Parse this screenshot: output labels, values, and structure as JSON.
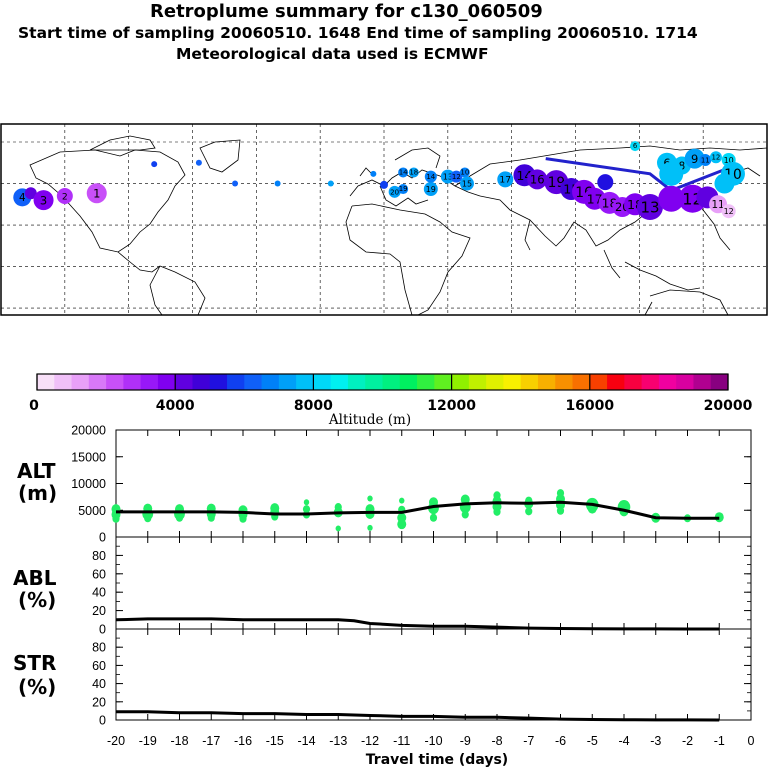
{
  "header": {
    "title": "Retroplume summary for c130_060509",
    "line2": "Start time of sampling 20060510.  1648     End time of sampling 20060510.  1714",
    "line3": "Meteorological data used is ECMWF"
  },
  "colors": {
    "point_green": "#22ee66",
    "line": "#000000",
    "track_blue": "#2222cc"
  },
  "colorbar": {
    "label": "Altitude (m)",
    "ticks": [
      "0",
      "4000",
      "8000",
      "12000",
      "16000",
      "20000"
    ],
    "colors": [
      "#f8e0f8",
      "#f0c0f8",
      "#e8a0f8",
      "#d878f8",
      "#c850f8",
      "#b030f8",
      "#9818f8",
      "#8000f0",
      "#6000e0",
      "#4000d8",
      "#2010e0",
      "#1040f0",
      "#1060f8",
      "#0080f8",
      "#00a0f8",
      "#00c0f8",
      "#00d8f8",
      "#00f0f0",
      "#00f0c0",
      "#00f0a0",
      "#00f080",
      "#00f060",
      "#30f040",
      "#60f020",
      "#90f000",
      "#c0f000",
      "#e0f000",
      "#f8f000",
      "#f8d000",
      "#f8b000",
      "#f89000",
      "#f87000",
      "#f84000",
      "#f80010",
      "#f80040",
      "#f80070",
      "#f000a0",
      "#d800a0",
      "#b00090",
      "#880080"
    ]
  },
  "map": {
    "plume_points": [
      {
        "lon": -170,
        "lat": 20,
        "c": "#1060f8",
        "r": 9,
        "label": "4"
      },
      {
        "lon": -166,
        "lat": 23,
        "c": "#6000e0",
        "r": 6,
        "label": ""
      },
      {
        "lon": -160,
        "lat": 18,
        "c": "#8000f0",
        "r": 10,
        "label": "3"
      },
      {
        "lon": -150,
        "lat": 21,
        "c": "#b030f8",
        "r": 8,
        "label": "2"
      },
      {
        "lon": -135,
        "lat": 23,
        "c": "#c850f8",
        "r": 10,
        "label": "1"
      },
      {
        "lon": -108,
        "lat": 44,
        "c": "#1040f0",
        "r": 3,
        "label": ""
      },
      {
        "lon": -87,
        "lat": 45,
        "c": "#1060f8",
        "r": 3,
        "label": ""
      },
      {
        "lon": -70,
        "lat": 30,
        "c": "#1060f8",
        "r": 3,
        "label": ""
      },
      {
        "lon": -50,
        "lat": 30,
        "c": "#0080f8",
        "r": 3,
        "label": ""
      },
      {
        "lon": -25,
        "lat": 30,
        "c": "#00a0f8",
        "r": 3,
        "label": ""
      },
      {
        "lon": -5,
        "lat": 37,
        "c": "#0080f8",
        "r": 3,
        "label": ""
      },
      {
        "lon": 0,
        "lat": 29,
        "c": "#1040f0",
        "r": 4,
        "label": ""
      },
      {
        "lon": 9,
        "lat": 38,
        "c": "#0080f8",
        "r": 5,
        "label": "14"
      },
      {
        "lon": 14,
        "lat": 38,
        "c": "#00a0f8",
        "r": 5,
        "label": "18"
      },
      {
        "lon": 5,
        "lat": 24,
        "c": "#00a0f8",
        "r": 6,
        "label": "20"
      },
      {
        "lon": 9,
        "lat": 26,
        "c": "#0080f8",
        "r": 5,
        "label": "19"
      },
      {
        "lon": 22,
        "lat": 26,
        "c": "#00a0f8",
        "r": 7,
        "label": "19"
      },
      {
        "lon": 22,
        "lat": 35,
        "c": "#0080f8",
        "r": 6,
        "label": "14"
      },
      {
        "lon": 30,
        "lat": 35,
        "c": "#00a0f8",
        "r": 7,
        "label": "13"
      },
      {
        "lon": 34,
        "lat": 35,
        "c": "#1060f8",
        "r": 6,
        "label": "12"
      },
      {
        "lon": 38,
        "lat": 38,
        "c": "#0080f8",
        "r": 5,
        "label": "10"
      },
      {
        "lon": 39,
        "lat": 30,
        "c": "#00a0f8",
        "r": 7,
        "label": "15"
      },
      {
        "lon": 57,
        "lat": 33,
        "c": "#00a0f8",
        "r": 8,
        "label": "17"
      },
      {
        "lon": 66,
        "lat": 36,
        "c": "#4000d8",
        "r": 11,
        "label": "14"
      },
      {
        "lon": 72,
        "lat": 33,
        "c": "#6000e0",
        "r": 10,
        "label": "16"
      },
      {
        "lon": 81,
        "lat": 31,
        "c": "#6000e0",
        "r": 12,
        "label": "19"
      },
      {
        "lon": 88,
        "lat": 26,
        "c": "#4000d8",
        "r": 11,
        "label": "15"
      },
      {
        "lon": 94,
        "lat": 24,
        "c": "#8000f0",
        "r": 12,
        "label": "16"
      },
      {
        "lon": 99,
        "lat": 19,
        "c": "#8000f0",
        "r": 11,
        "label": "17"
      },
      {
        "lon": 106,
        "lat": 16,
        "c": "#9818f8",
        "r": 11,
        "label": "18"
      },
      {
        "lon": 112,
        "lat": 13,
        "c": "#9818f8",
        "r": 10,
        "label": "20"
      },
      {
        "lon": 118,
        "lat": 15,
        "c": "#8000f0",
        "r": 11,
        "label": "18"
      },
      {
        "lon": 125,
        "lat": 13,
        "c": "#6000e0",
        "r": 13,
        "label": "13"
      },
      {
        "lon": 104,
        "lat": 31,
        "c": "#2010e0",
        "r": 8,
        "label": ""
      },
      {
        "lon": 135,
        "lat": 19,
        "c": "#8000f0",
        "r": 13,
        "label": ""
      },
      {
        "lon": 145,
        "lat": 19,
        "c": "#8000f0",
        "r": 14,
        "label": "12"
      },
      {
        "lon": 152,
        "lat": 20,
        "c": "#6000e0",
        "r": 11,
        "label": ""
      },
      {
        "lon": 157,
        "lat": 15,
        "c": "#e8a0f8",
        "r": 9,
        "label": "11"
      },
      {
        "lon": 162,
        "lat": 10,
        "c": "#f0c0f8",
        "r": 7,
        "label": "12"
      },
      {
        "lon": 118,
        "lat": 57,
        "c": "#00d8f8",
        "r": 5,
        "label": "6"
      },
      {
        "lon": 133,
        "lat": 45,
        "c": "#00c0f8",
        "r": 10,
        "label": "6"
      },
      {
        "lon": 140,
        "lat": 43,
        "c": "#00c0f8",
        "r": 9,
        "label": "8"
      },
      {
        "lon": 146,
        "lat": 48,
        "c": "#00a0f8",
        "r": 10,
        "label": "9"
      },
      {
        "lon": 151,
        "lat": 47,
        "c": "#0080f8",
        "r": 6,
        "label": "11"
      },
      {
        "lon": 156,
        "lat": 49,
        "c": "#00c0f8",
        "r": 6,
        "label": "12"
      },
      {
        "lon": 162,
        "lat": 47,
        "c": "#00d8f8",
        "r": 7,
        "label": "10"
      },
      {
        "lon": 164,
        "lat": 37,
        "c": "#00c0f8",
        "r": 12,
        "label": "10"
      },
      {
        "lon": 160,
        "lat": 30,
        "c": "#00c0f8",
        "r": 10,
        "label": ""
      },
      {
        "lon": 135,
        "lat": 37,
        "c": "#00c0f8",
        "r": 12,
        "label": ""
      }
    ],
    "flight_track": [
      [
        76,
        48
      ],
      [
        125,
        37
      ],
      [
        135,
        25
      ],
      [
        165,
        43
      ]
    ]
  },
  "chart_data": [
    {
      "type": "scatter",
      "panel": "ALT",
      "ylabel": "ALT\n(m)",
      "ylim": [
        0,
        20000
      ],
      "yticks": [
        "0",
        "5000",
        "10000",
        "15000",
        "20000"
      ],
      "xlim": [
        -20,
        0
      ],
      "mean_line": {
        "x": [
          -20,
          -19,
          -18,
          -17,
          -16,
          -15,
          -14,
          -13,
          -12,
          -11,
          -10,
          -9,
          -8,
          -7,
          -6,
          -5,
          -4,
          -3,
          -2,
          -1
        ],
        "y": [
          4700,
          4700,
          4700,
          4700,
          4600,
          4300,
          4300,
          4500,
          4600,
          4600,
          5700,
          6200,
          6400,
          6300,
          6500,
          6100,
          5000,
          3600,
          3500,
          3500
        ]
      },
      "points": [
        {
          "x": -20,
          "y": 5200,
          "s": 5
        },
        {
          "x": -20,
          "y": 4200,
          "s": 5
        },
        {
          "x": -20,
          "y": 3400,
          "s": 4
        },
        {
          "x": -19,
          "y": 5300,
          "s": 5
        },
        {
          "x": -19,
          "y": 4300,
          "s": 6
        },
        {
          "x": -19,
          "y": 3500,
          "s": 4
        },
        {
          "x": -18,
          "y": 5200,
          "s": 5
        },
        {
          "x": -18,
          "y": 4300,
          "s": 6
        },
        {
          "x": -18,
          "y": 3600,
          "s": 4
        },
        {
          "x": -17,
          "y": 5300,
          "s": 5
        },
        {
          "x": -17,
          "y": 4300,
          "s": 5
        },
        {
          "x": -17,
          "y": 3600,
          "s": 4
        },
        {
          "x": -16,
          "y": 5000,
          "s": 5
        },
        {
          "x": -16,
          "y": 4200,
          "s": 5
        },
        {
          "x": -16,
          "y": 3400,
          "s": 4
        },
        {
          "x": -15,
          "y": 5400,
          "s": 5
        },
        {
          "x": -15,
          "y": 4600,
          "s": 5
        },
        {
          "x": -15,
          "y": 3800,
          "s": 4
        },
        {
          "x": -14,
          "y": 6500,
          "s": 3
        },
        {
          "x": -14,
          "y": 5200,
          "s": 4
        },
        {
          "x": -14,
          "y": 4200,
          "s": 4
        },
        {
          "x": -13,
          "y": 5600,
          "s": 4
        },
        {
          "x": -13,
          "y": 4600,
          "s": 5
        },
        {
          "x": -13,
          "y": 1600,
          "s": 3
        },
        {
          "x": -12,
          "y": 7200,
          "s": 3
        },
        {
          "x": -12,
          "y": 5200,
          "s": 5
        },
        {
          "x": -12,
          "y": 4300,
          "s": 5
        },
        {
          "x": -12,
          "y": 1700,
          "s": 3
        },
        {
          "x": -11,
          "y": 6800,
          "s": 3
        },
        {
          "x": -11,
          "y": 5100,
          "s": 4
        },
        {
          "x": -11,
          "y": 3600,
          "s": 5
        },
        {
          "x": -11,
          "y": 2400,
          "s": 5
        },
        {
          "x": -10,
          "y": 6500,
          "s": 5
        },
        {
          "x": -10,
          "y": 5400,
          "s": 6
        },
        {
          "x": -10,
          "y": 3600,
          "s": 4
        },
        {
          "x": -9,
          "y": 7000,
          "s": 5
        },
        {
          "x": -9,
          "y": 5600,
          "s": 6
        },
        {
          "x": -9,
          "y": 4200,
          "s": 4
        },
        {
          "x": -8,
          "y": 7800,
          "s": 4
        },
        {
          "x": -8,
          "y": 6700,
          "s": 5
        },
        {
          "x": -8,
          "y": 5700,
          "s": 5
        },
        {
          "x": -8,
          "y": 4700,
          "s": 4
        },
        {
          "x": -7,
          "y": 6800,
          "s": 4
        },
        {
          "x": -7,
          "y": 6200,
          "s": 5
        },
        {
          "x": -7,
          "y": 4800,
          "s": 4
        },
        {
          "x": -6,
          "y": 8200,
          "s": 4
        },
        {
          "x": -6,
          "y": 7100,
          "s": 5
        },
        {
          "x": -6,
          "y": 6000,
          "s": 5
        },
        {
          "x": -6,
          "y": 4900,
          "s": 4
        },
        {
          "x": -5,
          "y": 6000,
          "s": 7
        },
        {
          "x": -5,
          "y": 5300,
          "s": 5
        },
        {
          "x": -4,
          "y": 5600,
          "s": 7
        },
        {
          "x": -4,
          "y": 4800,
          "s": 5
        },
        {
          "x": -3,
          "y": 3600,
          "s": 5
        },
        {
          "x": -2,
          "y": 3500,
          "s": 4
        },
        {
          "x": -1,
          "y": 3700,
          "s": 5
        }
      ]
    },
    {
      "type": "line",
      "panel": "ABL",
      "ylabel": "ABL\n(%)",
      "ylim": [
        0,
        100
      ],
      "yticks": [
        "0",
        "20",
        "40",
        "60",
        "80"
      ],
      "x": [
        -20,
        -19,
        -18,
        -17,
        -16,
        -15,
        -14,
        -13,
        -12.5,
        -12,
        -11,
        -10,
        -9,
        -8,
        -7,
        -6,
        -5,
        -4,
        -3,
        -2,
        -1
      ],
      "y": [
        10,
        11,
        11,
        11,
        10,
        10,
        10,
        10,
        9,
        6,
        4,
        3,
        3,
        2,
        1,
        0.5,
        0.3,
        0.2,
        0.1,
        0,
        0
      ]
    },
    {
      "type": "line",
      "panel": "STR",
      "ylabel": "STR\n(%)",
      "ylim": [
        0,
        100
      ],
      "yticks": [
        "0",
        "20",
        "40",
        "60",
        "80"
      ],
      "x": [
        -20,
        -19,
        -18,
        -17,
        -16,
        -15,
        -14,
        -13,
        -12,
        -11,
        -10,
        -9,
        -8,
        -7,
        -6,
        -5,
        -4,
        -3,
        -2,
        -1
      ],
      "y": [
        9,
        9,
        8,
        8,
        7,
        7,
        6,
        6,
        5,
        4,
        4,
        3,
        3,
        2,
        1,
        0.5,
        0.3,
        0.2,
        0.1,
        0
      ]
    }
  ],
  "xaxis": {
    "label": "Travel time (days)",
    "ticks": [
      "-20",
      "-19",
      "-18",
      "-17",
      "-16",
      "-15",
      "-14",
      "-13",
      "-12",
      "-11",
      "-10",
      "-9",
      "-8",
      "-7",
      "-6",
      "-5",
      "-4",
      "-3",
      "-2",
      "-1",
      "0"
    ]
  },
  "panel_labels": {
    "alt": [
      "ALT",
      "(m)"
    ],
    "abl": [
      "ABL",
      "(%)"
    ],
    "str": [
      "STR",
      "(%)"
    ]
  }
}
